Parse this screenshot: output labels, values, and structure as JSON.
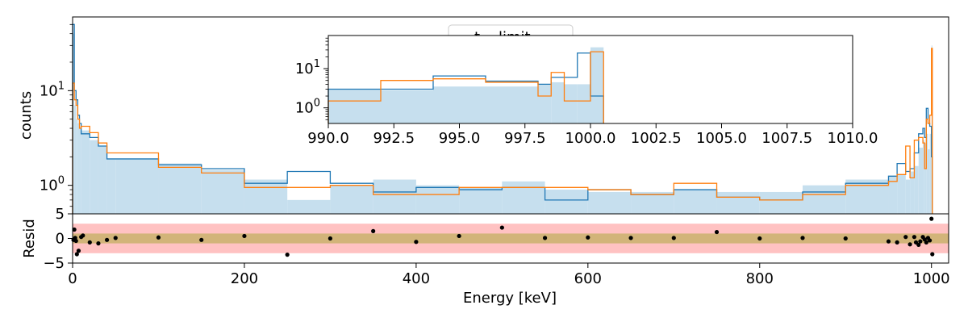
{
  "chart_data": [
    {
      "id": "main_spectrum",
      "type": "area",
      "ylabel": "counts",
      "xlabel": "",
      "yscale": "log",
      "xlim": [
        0,
        1020
      ],
      "ylim": [
        0.5,
        60
      ],
      "yticks": [
        {
          "value": 1,
          "label": "10^0",
          "base": "10",
          "exp": "0"
        },
        {
          "value": 10,
          "label": "10^1",
          "base": "10",
          "exp": "1"
        }
      ],
      "legend": {
        "placement": "top-center",
        "entries": [
          "t... limit..."
        ]
      },
      "colors": {
        "blue": "#1f77b4",
        "orange": "#ff7f0e",
        "fill": "#c6dfee"
      },
      "series": [
        {
          "kind": "filled-histogram",
          "edges": [
            0,
            2,
            4,
            6,
            8,
            10,
            20,
            30,
            40,
            50,
            100,
            150,
            200,
            250,
            300,
            350,
            400,
            450,
            500,
            550,
            600,
            650,
            700,
            750,
            800,
            850,
            900,
            950,
            960,
            970,
            975,
            980,
            985,
            990,
            992,
            994,
            996,
            998,
            1000,
            1001
          ],
          "values": [
            40,
            7,
            5,
            4.5,
            4.2,
            3.8,
            3,
            2.6,
            1.9,
            1.9,
            1.7,
            1.45,
            1.15,
            0.7,
            1.0,
            1.15,
            1.0,
            0.95,
            1.1,
            0.9,
            0.85,
            0.85,
            0.9,
            0.85,
            0.85,
            1.0,
            1.15,
            1.25,
            1.3,
            1.15,
            1.4,
            1.6,
            2.5,
            3.0,
            2.8,
            3.5,
            2.4,
            3.5,
            30
          ]
        },
        {
          "kind": "step-histogram",
          "color": "#1f77b4",
          "edges": [
            0,
            2,
            4,
            6,
            8,
            10,
            20,
            30,
            40,
            50,
            100,
            150,
            200,
            250,
            300,
            350,
            400,
            450,
            500,
            550,
            600,
            650,
            700,
            750,
            800,
            850,
            900,
            950,
            960,
            970,
            975,
            980,
            985,
            990,
            992,
            994,
            996,
            998,
            1000,
            1001
          ],
          "values": [
            50,
            10,
            8,
            5.5,
            4.5,
            3.5,
            3.2,
            2.6,
            1.9,
            1.9,
            1.65,
            1.5,
            1.05,
            1.4,
            1.05,
            0.85,
            0.95,
            0.9,
            0.95,
            0.7,
            0.9,
            0.8,
            0.9,
            0.75,
            0.7,
            0.85,
            1.05,
            1.25,
            1.7,
            1.4,
            1.5,
            2.2,
            3.5,
            4.0,
            3.2,
            6.5,
            4.5,
            4.2,
            2.0
          ]
        },
        {
          "kind": "step-histogram",
          "color": "#ff7f0e",
          "edges": [
            0,
            2,
            4,
            6,
            8,
            10,
            20,
            30,
            40,
            50,
            100,
            150,
            200,
            250,
            300,
            350,
            400,
            450,
            500,
            550,
            600,
            650,
            700,
            750,
            800,
            850,
            900,
            950,
            960,
            970,
            975,
            980,
            985,
            990,
            992,
            994,
            996,
            998,
            1000,
            1001
          ],
          "values": [
            12,
            8,
            7,
            5,
            4,
            4.2,
            3.6,
            2.8,
            2.2,
            2.2,
            1.55,
            1.35,
            0.95,
            0.95,
            1.0,
            0.8,
            0.8,
            0.95,
            0.95,
            0.95,
            0.9,
            0.8,
            1.05,
            0.75,
            0.7,
            0.8,
            1.0,
            1.1,
            1.3,
            2.6,
            1.2,
            3.0,
            3.2,
            2.8,
            1.5,
            5.0,
            4.5,
            5.5,
            28
          ]
        }
      ]
    },
    {
      "id": "inset_zoom",
      "type": "area",
      "yscale": "log",
      "xlim": [
        990,
        1010
      ],
      "ylim": [
        0.4,
        70
      ],
      "xticks": [
        "990.0",
        "992.5",
        "995.0",
        "997.5",
        "1000.0",
        "1002.5",
        "1005.0",
        "1007.5",
        "1010.0"
      ],
      "yticks": [
        {
          "value": 1,
          "label": "10^0",
          "base": "10",
          "exp": "0"
        },
        {
          "value": 10,
          "label": "10^1",
          "base": "10",
          "exp": "1"
        }
      ],
      "series": [
        {
          "kind": "filled-histogram",
          "edges": [
            990,
            992,
            994,
            996,
            998,
            998.5,
            999,
            999.5,
            1000,
            1000.5
          ],
          "values": [
            3.0,
            2.8,
            3.5,
            3.5,
            4.0,
            4.5,
            4.0,
            4.0,
            35
          ]
        },
        {
          "kind": "step-histogram",
          "color": "#1f77b4",
          "edges": [
            990,
            992,
            994,
            996,
            998,
            998.5,
            999,
            999.5,
            1000,
            1000.5
          ],
          "values": [
            3.0,
            3.0,
            6.5,
            4.8,
            4.0,
            6.0,
            6.0,
            25,
            2.0
          ]
        },
        {
          "kind": "step-histogram",
          "color": "#ff7f0e",
          "edges": [
            990,
            992,
            994,
            996,
            998,
            998.5,
            999,
            999.5,
            1000,
            1000.5
          ],
          "values": [
            1.5,
            5.0,
            5.5,
            4.5,
            2.0,
            8.0,
            1.5,
            1.5,
            27
          ]
        }
      ]
    },
    {
      "id": "residuals",
      "type": "scatter",
      "ylabel": "Resid",
      "xlabel": "Energy [keV]",
      "xlim": [
        0,
        1020
      ],
      "ylim": [
        -5,
        5
      ],
      "xticks": [
        "0",
        "200",
        "400",
        "600",
        "800",
        "1000"
      ],
      "yticks": [
        "−5",
        "0",
        "5"
      ],
      "bands": [
        {
          "from": -3,
          "to": 3,
          "color": "#ffc2c2"
        },
        {
          "from": -1,
          "to": 1,
          "color": "#d2b479"
        }
      ],
      "points": {
        "x": [
          1,
          2,
          3,
          4,
          5,
          7,
          10,
          12,
          20,
          30,
          40,
          50,
          100,
          150,
          200,
          250,
          300,
          350,
          400,
          450,
          500,
          550,
          600,
          650,
          700,
          750,
          800,
          850,
          900,
          950,
          960,
          970,
          975,
          980,
          982,
          985,
          987,
          990,
          992,
          994,
          996,
          998,
          1000,
          1001
        ],
        "y": [
          -0.3,
          1.8,
          0.1,
          -0.5,
          -3.2,
          -2.5,
          0.3,
          0.6,
          -0.8,
          -1.0,
          -0.3,
          0.1,
          0.2,
          -0.3,
          0.5,
          -3.3,
          0.0,
          1.5,
          -0.7,
          0.5,
          2.2,
          0.1,
          0.2,
          0.1,
          0.1,
          1.3,
          0.0,
          0.1,
          0.0,
          -0.6,
          -0.8,
          0.3,
          -1.2,
          0.3,
          -0.8,
          -1.3,
          -0.6,
          0.3,
          -0.2,
          -0.8,
          0.1,
          -0.4,
          4.0,
          -3.2
        ]
      }
    }
  ]
}
